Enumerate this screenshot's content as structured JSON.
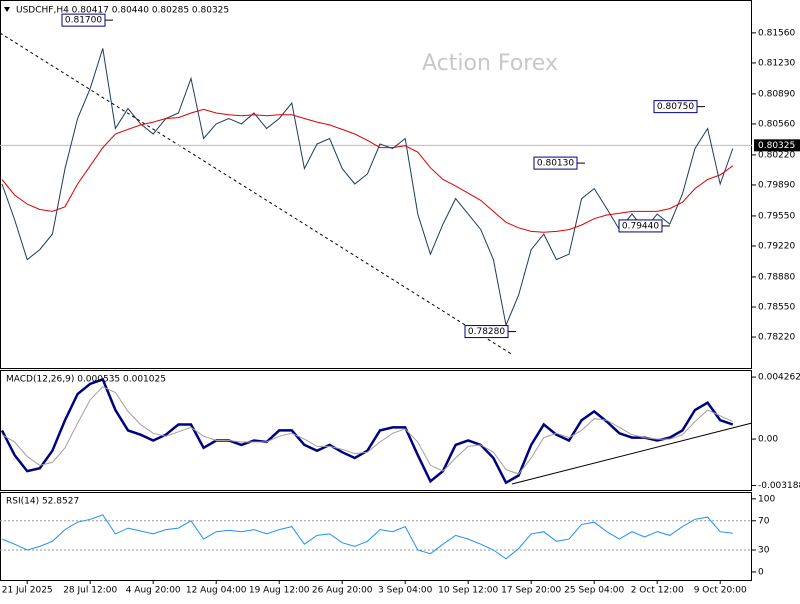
{
  "chart_data": [
    {
      "type": "line",
      "title": "USDCHF,H4  0.80417 0.80440 0.80285 0.80325",
      "watermark": "Action Forex",
      "categories": [
        null,
        null,
        "21 Jul 2025",
        null,
        null,
        null,
        null,
        "28 Jul 12:00",
        null,
        null,
        null,
        null,
        "4 Aug 20:00",
        null,
        null,
        null,
        null,
        "12 Aug 04:00",
        null,
        null,
        null,
        null,
        "19 Aug 12:00",
        null,
        null,
        null,
        null,
        "26 Aug 20:00",
        null,
        null,
        null,
        null,
        "3 Sep 04:00",
        null,
        null,
        null,
        null,
        "10 Sep 12:00",
        null,
        null,
        null,
        null,
        "17 Sep 20:00",
        null,
        null,
        null,
        null,
        "25 Sep 04:00",
        null,
        null,
        null,
        null,
        "2 Oct 12:00",
        null,
        null,
        null,
        null,
        "9 Oct 20:00",
        null
      ],
      "series": [
        {
          "color": "#1e3a5f",
          "values": [
            0.799,
            0.7951,
            0.7907,
            0.7918,
            0.7935,
            0.8007,
            0.8062,
            0.8095,
            0.8139,
            0.8051,
            0.8073,
            0.8056,
            0.8045,
            0.8062,
            0.8068,
            0.8106,
            0.804,
            0.8056,
            0.8062,
            0.8056,
            0.8068,
            0.8051,
            0.8062,
            0.8079,
            0.8007,
            0.8034,
            0.804,
            0.8007,
            0.799,
            0.8001,
            0.8034,
            0.8029,
            0.804,
            0.7957,
            0.7913,
            0.7946,
            0.7974,
            0.7957,
            0.794,
            0.7907,
            0.7835,
            0.7868,
            0.7918,
            0.7935,
            0.7907,
            0.7913,
            0.7974,
            0.7985,
            0.7963,
            0.794,
            0.7957,
            0.794,
            0.7957,
            0.7946,
            0.7979,
            0.8029,
            0.8051,
            0.799,
            0.8029
          ]
        },
        {
          "color": "#e00000",
          "values": [
            0.7995,
            0.7978,
            0.7968,
            0.7962,
            0.796,
            0.7965,
            0.799,
            0.801,
            0.803,
            0.8045,
            0.805,
            0.8055,
            0.8058,
            0.8062,
            0.8063,
            0.8068,
            0.8072,
            0.8068,
            0.8066,
            0.8065,
            0.8066,
            0.8065,
            0.8066,
            0.8066,
            0.8062,
            0.8058,
            0.8055,
            0.805,
            0.8045,
            0.8038,
            0.803,
            0.803,
            0.8032,
            0.8025,
            0.8008,
            0.7995,
            0.7988,
            0.798,
            0.7972,
            0.796,
            0.7948,
            0.7942,
            0.7938,
            0.7937,
            0.7938,
            0.794,
            0.7945,
            0.7952,
            0.7956,
            0.7958,
            0.796,
            0.796,
            0.796,
            0.7963,
            0.797,
            0.7985,
            0.7995,
            0.8,
            0.801
          ]
        }
      ],
      "ylim": [
        0.7788,
        0.8191
      ],
      "yticks": [
        {
          "value": 0.8156,
          "label": "0.81560"
        },
        {
          "value": 0.8123,
          "label": "0.81230"
        },
        {
          "value": 0.8089,
          "label": "0.80890"
        },
        {
          "value": 0.8056,
          "label": "0.80560"
        },
        {
          "value": 0.8022,
          "label": "0.80220"
        },
        {
          "value": 0.7989,
          "label": "0.79890"
        },
        {
          "value": 0.7955,
          "label": "0.79550"
        },
        {
          "value": 0.7922,
          "label": "0.79220"
        },
        {
          "value": 0.7888,
          "label": "0.78880"
        },
        {
          "value": 0.7855,
          "label": "0.78550"
        },
        {
          "value": 0.7822,
          "label": "0.78220"
        }
      ],
      "last": {
        "value": 0.80325,
        "label": "0.80325"
      },
      "annotations": [
        {
          "value": 0.817,
          "label": "0.81700"
        },
        {
          "value": 0.8075,
          "label": "0.80750"
        },
        {
          "value": 0.8013,
          "label": "0.80130"
        },
        {
          "value": 0.7944,
          "label": "0.79440"
        },
        {
          "value": 0.7828,
          "label": "0.78280"
        }
      ]
    },
    {
      "type": "line",
      "title": "MACD(12,26,9) 0.000535 0.001025",
      "series": [
        {
          "color": "#000080",
          "values": [
            0.0006,
            -0.0011,
            -0.0022,
            -0.002,
            -0.0008,
            0.0013,
            0.0031,
            0.0038,
            0.0041,
            0.002,
            0.0006,
            0.0003,
            -0.0001,
            0.0003,
            0.001,
            0.001,
            -0.0006,
            -0.0001,
            -0.0001,
            -0.0004,
            -0.0001,
            -0.0002,
            0.0006,
            0.0006,
            -0.0004,
            -0.0008,
            -0.0004,
            -0.0009,
            -0.0013,
            -0.0008,
            0.0006,
            0.0008,
            0.0008,
            -0.0011,
            -0.0029,
            -0.0022,
            -0.0004,
            -0.0001,
            -0.0004,
            -0.0013,
            -0.003,
            -0.0025,
            -0.0004,
            0.001,
            0.0003,
            -0.0001,
            0.0013,
            0.0019,
            0.0012,
            0.0004,
            0.0001,
            0.0001,
            -0.0001,
            0.0001,
            0.0006,
            0.002,
            0.0025,
            0.0013,
            0.001
          ]
        },
        {
          "color": "#a0a0a0",
          "values": [
            0.0003,
            -0.0002,
            -0.0012,
            -0.0018,
            -0.0016,
            -0.0006,
            0.0011,
            0.0027,
            0.0036,
            0.0032,
            0.0019,
            0.001,
            0.0004,
            0.0002,
            0.0005,
            0.0008,
            0.0002,
            -0.0001,
            -0.0001,
            -0.0002,
            -0.0002,
            -0.0002,
            0.0002,
            0.0004,
            0.0,
            -0.0005,
            -0.0005,
            -0.0007,
            -0.001,
            -0.0009,
            -0.0002,
            0.0004,
            0.0007,
            -0.0002,
            -0.0018,
            -0.0022,
            -0.0013,
            -0.0005,
            -0.0004,
            -0.0009,
            -0.0021,
            -0.0024,
            -0.0013,
            0.0001,
            0.0004,
            0.0001,
            0.0006,
            0.0014,
            0.0013,
            0.0008,
            0.0003,
            0.0001,
            0.0,
            0.0,
            0.0003,
            0.0012,
            0.002,
            0.0016,
            0.0012
          ]
        }
      ],
      "ylim": [
        -0.0035,
        0.00468
      ],
      "yticks": [
        0.004262,
        {
          "value": 0,
          "label": "0.00"
        },
        -0.003188
      ]
    },
    {
      "type": "line",
      "title": "RSI(14) 52.8527",
      "series": [
        {
          "color": "#1e90ff",
          "values": [
            45,
            38,
            30,
            35,
            42,
            58,
            68,
            72,
            78,
            52,
            60,
            56,
            52,
            58,
            60,
            70,
            45,
            55,
            57,
            55,
            58,
            52,
            58,
            62,
            38,
            50,
            52,
            40,
            35,
            42,
            58,
            55,
            62,
            30,
            25,
            38,
            50,
            45,
            38,
            30,
            18,
            32,
            52,
            55,
            42,
            45,
            65,
            68,
            55,
            45,
            55,
            48,
            55,
            50,
            62,
            72,
            75,
            55,
            53
          ]
        }
      ],
      "ylim": [
        -11,
        108
      ],
      "yticks": [
        100,
        70,
        30,
        0
      ],
      "levels": [
        70,
        30
      ]
    }
  ]
}
